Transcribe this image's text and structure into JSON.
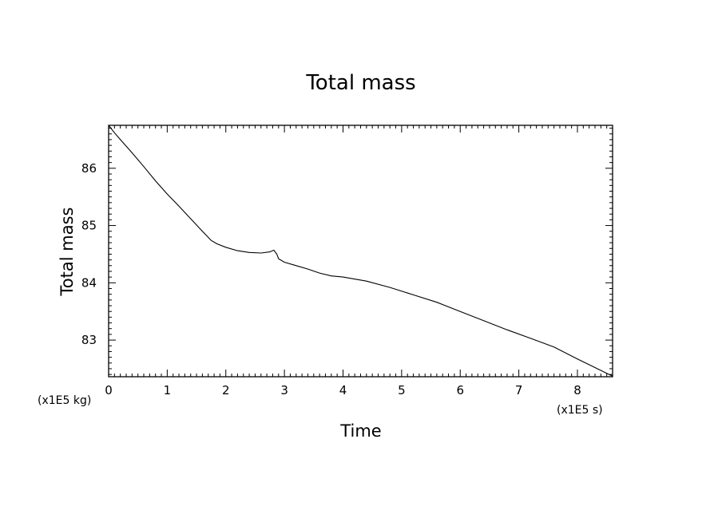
{
  "chart_data": {
    "type": "line",
    "title": "Total mass",
    "xlabel": "Time",
    "ylabel": "Total mass",
    "x_unit": "(x1E5 s)",
    "y_unit": "(x1E5 kg)",
    "xlim": [
      0,
      8.6
    ],
    "ylim": [
      82.36,
      86.75
    ],
    "xticks": [
      0,
      1,
      2,
      3,
      4,
      5,
      6,
      7,
      8
    ],
    "xtick_labels": [
      "0",
      "1",
      "2",
      "3",
      "4",
      "5",
      "6",
      "7",
      "8"
    ],
    "yticks": [
      83,
      84,
      85,
      86
    ],
    "ytick_labels": [
      "83",
      "84",
      "85",
      "86"
    ],
    "grid": false,
    "series": [
      {
        "x": [
          0,
          0.1,
          0.2,
          0.4,
          0.6,
          0.8,
          1.0,
          1.2,
          1.4,
          1.6,
          1.75,
          1.85,
          2.0,
          2.2,
          2.4,
          2.6,
          2.75,
          2.82,
          2.87,
          2.9,
          3.0,
          3.2,
          3.4,
          3.6,
          3.8,
          4.0,
          4.4,
          4.8,
          5.2,
          5.6,
          6.0,
          6.4,
          6.8,
          7.2,
          7.6,
          8.0,
          8.3,
          8.6
        ],
        "y": [
          86.75,
          86.62,
          86.5,
          86.27,
          86.03,
          85.78,
          85.55,
          85.34,
          85.12,
          84.9,
          84.74,
          84.68,
          84.62,
          84.56,
          84.53,
          84.52,
          84.54,
          84.57,
          84.5,
          84.42,
          84.36,
          84.3,
          84.24,
          84.17,
          84.12,
          84.1,
          84.03,
          83.92,
          83.79,
          83.66,
          83.5,
          83.34,
          83.18,
          83.03,
          82.88,
          82.67,
          82.52,
          82.37
        ]
      }
    ]
  }
}
